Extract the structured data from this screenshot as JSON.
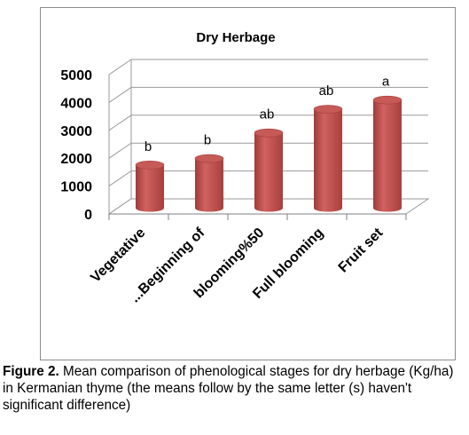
{
  "chart_data": {
    "type": "bar",
    "title": "Dry Herbage",
    "categories": [
      "Vegetative",
      "...Beginning of",
      "blooming%50",
      "Full blooming",
      "Fruit set"
    ],
    "values": [
      1550,
      1780,
      2700,
      3550,
      3880
    ],
    "data_labels": [
      "b",
      "b",
      "ab",
      "ab",
      "a"
    ],
    "ylim": [
      0,
      5000
    ],
    "yticks": [
      0,
      1000,
      2000,
      3000,
      4000,
      5000
    ],
    "xlabel": "",
    "ylabel": "",
    "grid": true,
    "style": "3d-cylinder",
    "bar_color": "#c0504d"
  },
  "caption": {
    "figure_label": "Figure 2.",
    "text": " Mean comparison of  phenological stages for dry herbage (Kg/ha)  in Kermanian thyme (the means follow by the same letter (s) haven't significant difference)"
  }
}
